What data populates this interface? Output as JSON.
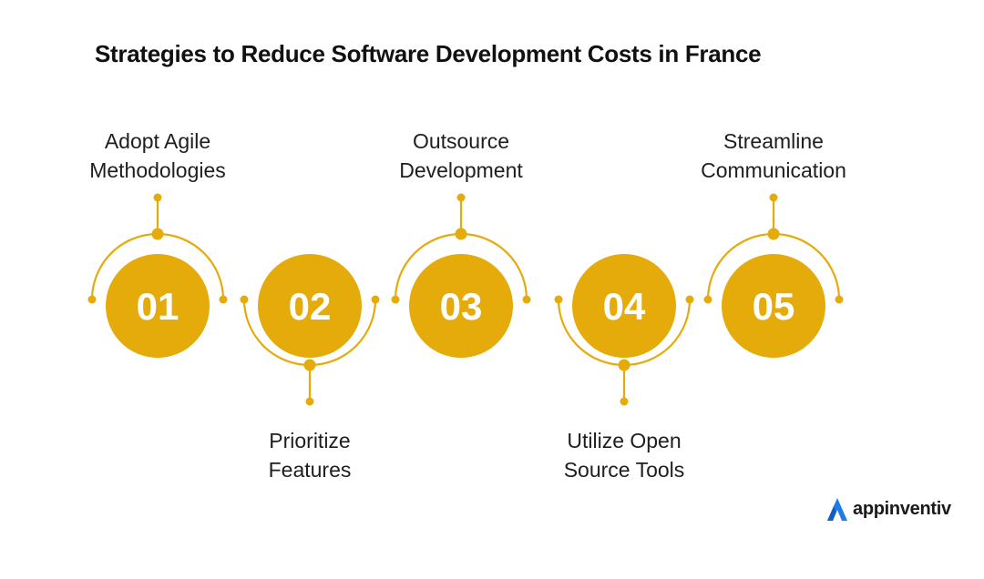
{
  "title": "Strategies to Reduce Software Development Costs in France",
  "colors": {
    "accent": "#E5AB0B",
    "number_text": "#FFFFFF",
    "text": "#1E1E1E",
    "logo_blue": "#1F7BEA"
  },
  "steps": [
    {
      "number": "01",
      "label_lines": [
        "Adopt Agile",
        "Methodologies"
      ],
      "label_position": "top"
    },
    {
      "number": "02",
      "label_lines": [
        "Prioritize",
        "Features"
      ],
      "label_position": "bottom"
    },
    {
      "number": "03",
      "label_lines": [
        "Outsource",
        "Development"
      ],
      "label_position": "top"
    },
    {
      "number": "04",
      "label_lines": [
        "Utilize Open",
        "Source Tools"
      ],
      "label_position": "bottom"
    },
    {
      "number": "05",
      "label_lines": [
        "Streamline",
        "Communication"
      ],
      "label_position": "top"
    }
  ],
  "logo": {
    "text": "appinventiv",
    "icon": "appinventiv-logo-icon"
  }
}
